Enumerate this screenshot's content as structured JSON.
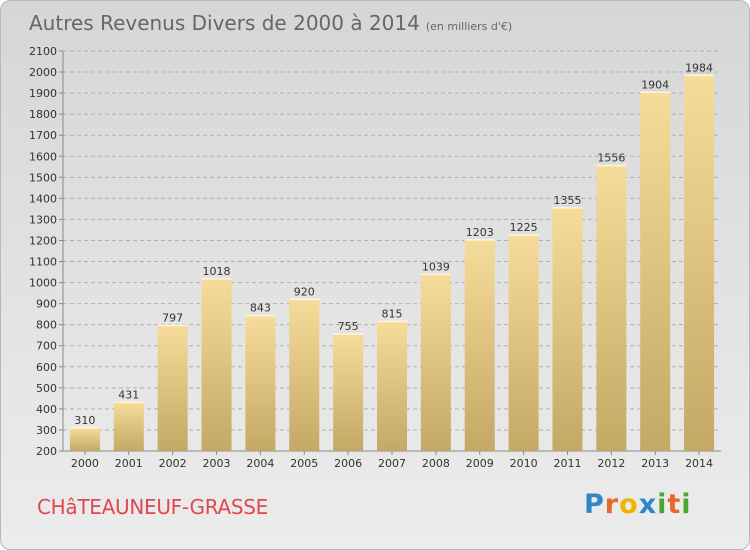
{
  "header": {
    "title": "Autres Revenus Divers de 2000 à 2014",
    "unit": "(en milliers d'€)"
  },
  "footer": {
    "place": "CHâTEAUNEUF-GRASSE",
    "logo": {
      "letters": [
        "P",
        "r",
        "o",
        "x",
        "i",
        "t",
        "i"
      ],
      "colors": [
        "#2e86c8",
        "#e8662a",
        "#f0b400",
        "#2e86c8",
        "#4aa832",
        "#e8662a",
        "#4aa832"
      ]
    }
  },
  "chart_data": {
    "type": "bar",
    "title": "Autres Revenus Divers de 2000 à 2014",
    "subtitle": "(en milliers d'€)",
    "categories": [
      "2000",
      "2001",
      "2002",
      "2003",
      "2004",
      "2005",
      "2006",
      "2007",
      "2008",
      "2009",
      "2010",
      "2011",
      "2012",
      "2013",
      "2014"
    ],
    "values": [
      310,
      431,
      797,
      1018,
      843,
      920,
      755,
      815,
      1039,
      1203,
      1225,
      1355,
      1556,
      1904,
      1984
    ],
    "ylim": [
      200,
      2100
    ],
    "yticks": [
      200,
      300,
      400,
      500,
      600,
      700,
      800,
      900,
      1000,
      1100,
      1200,
      1300,
      1400,
      1500,
      1600,
      1700,
      1800,
      1900,
      2000,
      2100
    ],
    "grid": true,
    "bar_color_top": "#f6dc9a",
    "bar_color_bottom": "#c4a865"
  }
}
